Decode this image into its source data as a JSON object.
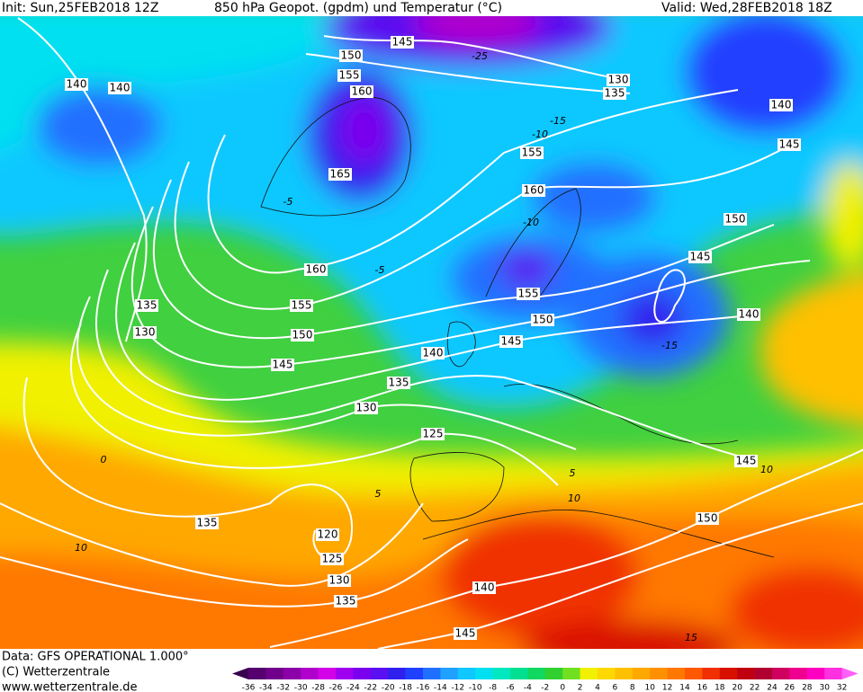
{
  "header": {
    "init": "Init: Sun,25FEB2018 12Z",
    "title": "850 hPa Geopot. (gpdm) und Temperatur (°C)",
    "valid": "Valid: Wed,28FEB2018 18Z"
  },
  "footer": {
    "data": "Data: GFS OPERATIONAL 1.000°",
    "copyright": "(C) Wetterzentrale",
    "url": "www.wetterzentrale.de"
  },
  "colorbar": {
    "labels": [
      -36,
      -34,
      -32,
      -30,
      -28,
      -26,
      -24,
      -22,
      -20,
      -18,
      -16,
      -14,
      -12,
      -10,
      -8,
      -6,
      -4,
      -2,
      0,
      2,
      4,
      6,
      8,
      10,
      12,
      14,
      16,
      18,
      20,
      22,
      24,
      26,
      28,
      30,
      32
    ],
    "colors": [
      "#3a0050",
      "#55006e",
      "#70008a",
      "#8c00a8",
      "#b000cc",
      "#d400e8",
      "#a000f0",
      "#7a00ee",
      "#5a10f0",
      "#3020ee",
      "#2040ff",
      "#2070ff",
      "#20a0ff",
      "#10c8ff",
      "#00e0f0",
      "#00e8c0",
      "#00e090",
      "#10d860",
      "#30d030",
      "#70e020",
      "#f0f000",
      "#ffd800",
      "#ffc000",
      "#ffa800",
      "#ff9000",
      "#ff7800",
      "#ff5800",
      "#f03000",
      "#d81000",
      "#c00010",
      "#b00030",
      "#d00060",
      "#f00090",
      "#ff00c0",
      "#ff30e0",
      "#ff60f8"
    ]
  },
  "contours": {
    "labels": [
      145,
      150,
      155,
      160,
      165,
      140,
      140,
      130,
      135,
      140,
      145,
      155,
      160,
      150,
      145,
      140,
      160,
      155,
      150,
      145,
      140,
      135,
      130,
      125,
      155,
      150,
      145,
      135,
      130,
      135,
      120,
      125,
      130,
      135,
      140,
      145,
      150,
      145
    ]
  },
  "isotherms": {
    "labels": [
      -25,
      -15,
      -10,
      -5,
      -5,
      0,
      5,
      5,
      10,
      10,
      10,
      15,
      -15,
      -10
    ]
  }
}
